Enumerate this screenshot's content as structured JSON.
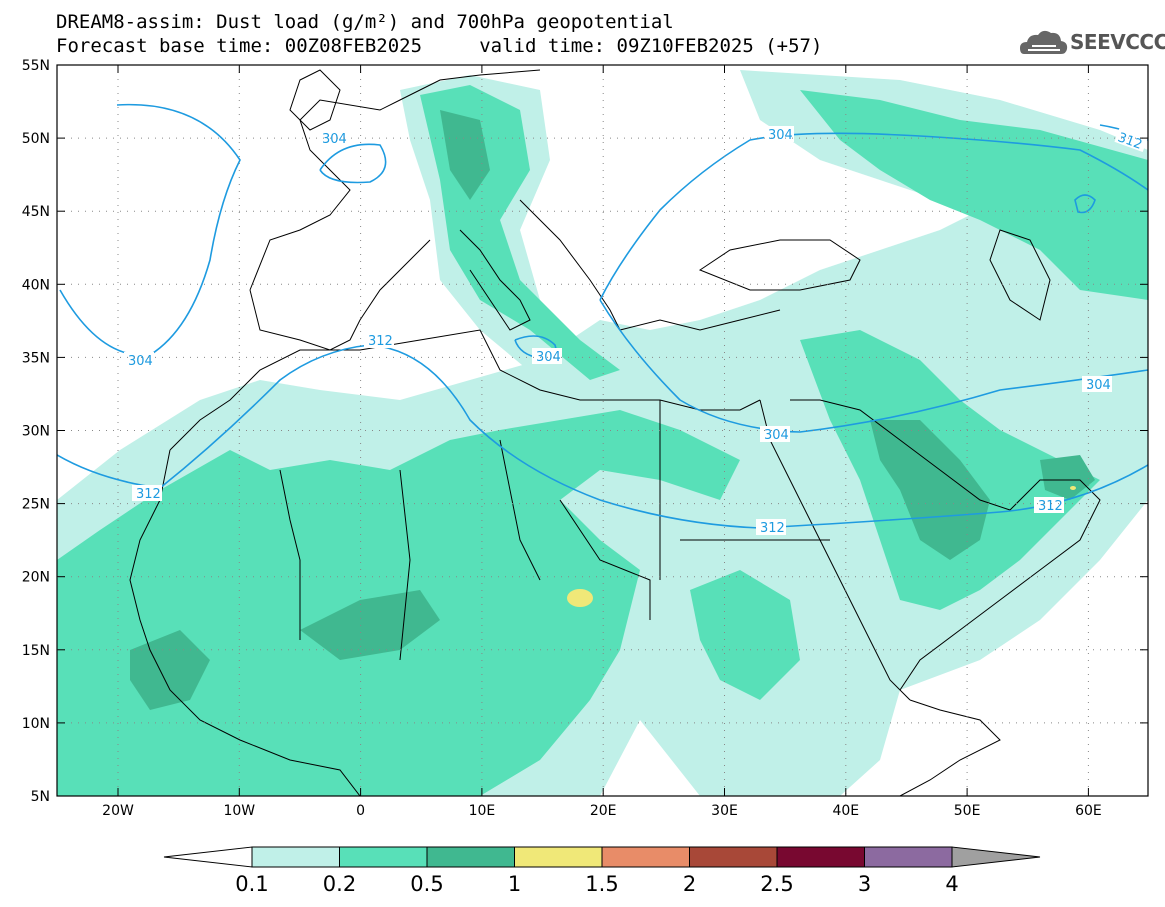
{
  "title_line1": "DREAM8-assim: Dust load (g/m²) and 700hPa geopotential",
  "title_line2": "Forecast base time: 00Z08FEB2025     valid time: 09Z10FEB2025 (+57)",
  "logo_text": "SEEVCCC",
  "lat_labels": [
    "55N",
    "50N",
    "45N",
    "40N",
    "35N",
    "30N",
    "25N",
    "20N",
    "15N",
    "10N",
    "5N"
  ],
  "lon_labels": [
    "20W",
    "10W",
    "0",
    "10E",
    "20E",
    "30E",
    "40E",
    "50E",
    "60E"
  ],
  "contour_labels": [
    "304",
    "304",
    "304",
    "304",
    "304",
    "312",
    "312",
    "312",
    "312",
    "312"
  ],
  "colorbar": {
    "labels": [
      "0.1",
      "0.2",
      "0.5",
      "1",
      "1.5",
      "2",
      "2.5",
      "3",
      "4"
    ],
    "colors": [
      "#c0f0e8",
      "#58e0b8",
      "#40b890",
      "#f0e878",
      "#e88c68",
      "#a84838",
      "#780830",
      "#8c6aa0"
    ],
    "under_color": "#ffffff",
    "over_color": "#a0a0a0"
  },
  "contour_color": "#1e9be0"
}
